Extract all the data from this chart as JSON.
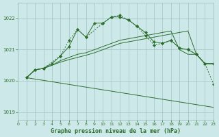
{
  "background_color": "#cce8e8",
  "grid_color": "#99bbbb",
  "line_color": "#2d6e2d",
  "title": "Graphe pression niveau de la mer (hPa)",
  "xlim": [
    0,
    23
  ],
  "ylim": [
    1018.75,
    1022.5
  ],
  "yticks": [
    1019,
    1020,
    1021,
    1022
  ],
  "xticks": [
    0,
    1,
    2,
    3,
    4,
    5,
    6,
    7,
    8,
    9,
    10,
    11,
    12,
    13,
    14,
    15,
    16,
    17,
    18,
    19,
    20,
    21,
    22,
    23
  ],
  "line1_dotted": {
    "x": [
      1,
      2,
      3,
      4,
      5,
      6,
      7,
      8,
      9,
      10,
      11,
      12,
      13,
      14,
      15,
      16,
      17,
      18,
      19,
      20,
      21,
      22,
      23
    ],
    "y": [
      1020.1,
      1020.35,
      1020.4,
      1020.55,
      1020.8,
      1021.1,
      1021.65,
      1021.4,
      1021.85,
      1021.85,
      1022.05,
      1022.05,
      1021.95,
      1021.75,
      1021.55,
      1021.25,
      1021.2,
      1021.3,
      1021.05,
      1021.0,
      1020.85,
      1020.55,
      1020.55
    ]
  },
  "line2_solid": {
    "x": [
      1,
      2,
      3,
      4,
      5,
      6,
      7,
      8,
      9,
      10,
      11,
      12,
      13,
      14,
      15,
      16,
      17,
      18,
      19,
      20,
      21,
      22,
      23
    ],
    "y": [
      1020.1,
      1020.35,
      1020.4,
      1020.5,
      1020.65,
      1020.75,
      1020.85,
      1020.9,
      1021.0,
      1021.1,
      1021.2,
      1021.3,
      1021.35,
      1021.4,
      1021.45,
      1021.5,
      1021.55,
      1021.6,
      1021.0,
      1020.85,
      1020.85,
      1020.55,
      1020.55
    ]
  },
  "line3_solid": {
    "x": [
      1,
      2,
      3,
      4,
      5,
      6,
      7,
      8,
      9,
      10,
      11,
      12,
      13,
      14,
      15,
      16,
      17,
      18,
      19,
      20,
      21,
      22,
      23
    ],
    "y": [
      1020.1,
      1020.35,
      1020.4,
      1020.5,
      1020.6,
      1020.68,
      1020.75,
      1020.82,
      1020.9,
      1021.0,
      1021.1,
      1021.2,
      1021.25,
      1021.3,
      1021.35,
      1021.4,
      1021.45,
      1021.5,
      1021.55,
      1021.6,
      1020.85,
      1020.55,
      1020.55
    ]
  },
  "line4_diagonal": {
    "x": [
      1,
      23
    ],
    "y": [
      1020.1,
      1019.15
    ]
  },
  "line5_markers": {
    "x": [
      1,
      2,
      3,
      5,
      6,
      7,
      8,
      10,
      11,
      12,
      13,
      14,
      15,
      16,
      17,
      18,
      19,
      20,
      21,
      22,
      23
    ],
    "y": [
      1020.1,
      1020.35,
      1020.4,
      1020.8,
      1021.3,
      1021.65,
      1021.4,
      1021.85,
      1022.05,
      1022.1,
      1021.95,
      1021.75,
      1021.45,
      1021.15,
      1021.2,
      1021.3,
      1021.05,
      1021.0,
      1020.85,
      1020.55,
      1019.9
    ]
  }
}
